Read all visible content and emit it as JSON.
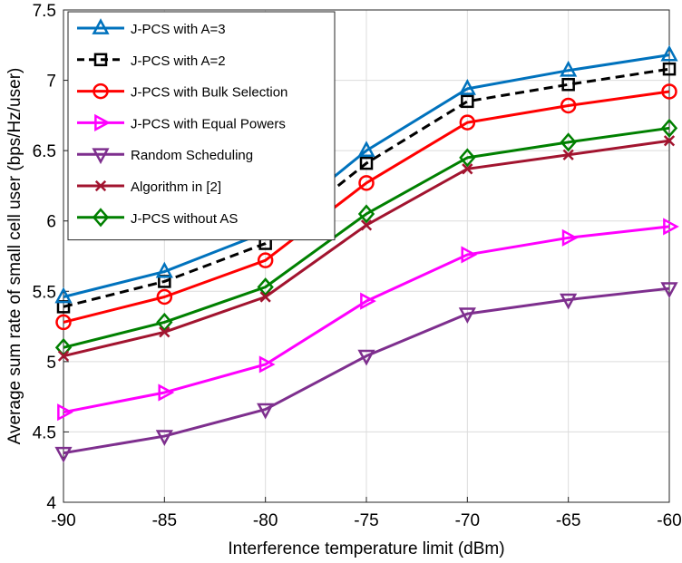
{
  "chart_data": {
    "type": "line",
    "title": "",
    "xlabel": "Interference temperature limit (dBm)",
    "ylabel": "Average sum rate of small cell user (bps/Hz/user)",
    "x": [
      -90,
      -85,
      -80,
      -75,
      -70,
      -65,
      -60
    ],
    "xticks": [
      "-90",
      "-85",
      "-80",
      "-75",
      "-70",
      "-65",
      "-60"
    ],
    "yticks": [
      "4",
      "4.5",
      "5",
      "5.5",
      "6",
      "6.5",
      "7",
      "7.5"
    ],
    "xlim": [
      -90,
      -60
    ],
    "ylim": [
      4,
      7.5
    ],
    "grid": true,
    "legend_position": "top-left",
    "series": [
      {
        "name": "J-PCS with A=3",
        "color": "#0072BD",
        "marker": "triangle-up",
        "dash": "solid",
        "values": [
          5.46,
          5.64,
          5.92,
          6.5,
          6.94,
          7.07,
          7.18
        ]
      },
      {
        "name": "J-PCS with A=2",
        "color": "#000000",
        "marker": "square",
        "dash": "dashed",
        "values": [
          5.39,
          5.57,
          5.84,
          6.41,
          6.85,
          6.97,
          7.08
        ]
      },
      {
        "name": "J-PCS with Bulk Selection",
        "color": "#FF0000",
        "marker": "circle",
        "dash": "solid",
        "values": [
          5.28,
          5.46,
          5.72,
          6.27,
          6.7,
          6.82,
          6.92
        ]
      },
      {
        "name": "J-PCS with Equal Powers",
        "color": "#FF00FF",
        "marker": "triangle-right",
        "dash": "solid",
        "values": [
          4.64,
          4.78,
          4.98,
          5.43,
          5.76,
          5.88,
          5.96
        ]
      },
      {
        "name": "Random Scheduling",
        "color": "#7E2F8E",
        "marker": "triangle-down",
        "dash": "solid",
        "values": [
          4.35,
          4.47,
          4.66,
          5.04,
          5.34,
          5.44,
          5.52
        ]
      },
      {
        "name": "Algorithm in [2]",
        "color": "#A2142F",
        "marker": "x",
        "dash": "solid",
        "values": [
          5.04,
          5.21,
          5.46,
          5.97,
          6.37,
          6.47,
          6.57
        ]
      },
      {
        "name": "J-PCS without AS",
        "color": "#008000",
        "marker": "diamond",
        "dash": "solid",
        "values": [
          5.1,
          5.28,
          5.53,
          6.05,
          6.45,
          6.56,
          6.66
        ]
      }
    ]
  }
}
